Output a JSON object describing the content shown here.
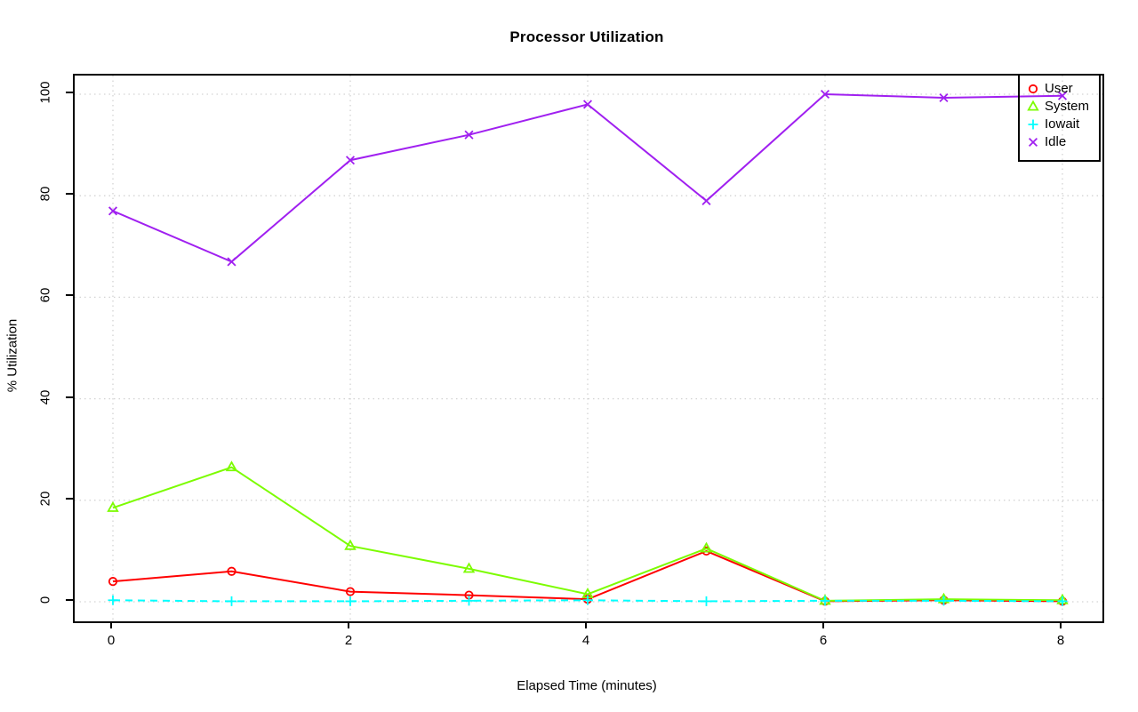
{
  "title": "Processor Utilization",
  "x_axis_title": "Elapsed Time (minutes)",
  "y_axis_title": "% Utilization",
  "colors": {
    "background": "#ffffff",
    "plot_border": "#000000",
    "grid": "#d3d3d3",
    "user": "#ff0000",
    "system": "#7cfc00",
    "iowait": "#00ffff",
    "idle": "#a020f0"
  },
  "legend": {
    "position": "topright",
    "items": [
      "User",
      "System",
      "Iowait",
      "Idle"
    ]
  },
  "chart_data": {
    "type": "line",
    "title": "Processor Utilization",
    "xlabel": "Elapsed Time (minutes)",
    "ylabel": "% Utilization",
    "x": [
      0,
      1,
      2,
      3,
      4,
      5,
      6,
      7,
      8
    ],
    "xlim": [
      0,
      8
    ],
    "ylim": [
      0,
      100
    ],
    "x_ticks": [
      0,
      2,
      4,
      6,
      8
    ],
    "y_ticks": [
      0,
      20,
      40,
      60,
      80,
      100
    ],
    "grid": true,
    "grid_style": "dotted",
    "legend_position": "topright",
    "series": [
      {
        "name": "User",
        "color": "#ff0000",
        "marker": "circle",
        "line_style": "solid",
        "values": [
          4,
          6,
          2,
          1.3,
          0.5,
          10,
          0.1,
          0.3,
          0.1
        ]
      },
      {
        "name": "System",
        "color": "#7cfc00",
        "marker": "triangle",
        "line_style": "solid",
        "values": [
          18.5,
          26.5,
          11,
          6.5,
          1.5,
          10.5,
          0.2,
          0.5,
          0.3
        ]
      },
      {
        "name": "Iowait",
        "color": "#00ffff",
        "marker": "plus",
        "line_style": "dashed",
        "values": [
          0.3,
          0.1,
          0.1,
          0.2,
          0.3,
          0.1,
          0.2,
          0.2,
          0.1
        ]
      },
      {
        "name": "Idle",
        "color": "#a020f0",
        "marker": "x",
        "line_style": "solid",
        "values": [
          77,
          67,
          87,
          92,
          98,
          79,
          100,
          99.3,
          99.7
        ]
      }
    ]
  }
}
